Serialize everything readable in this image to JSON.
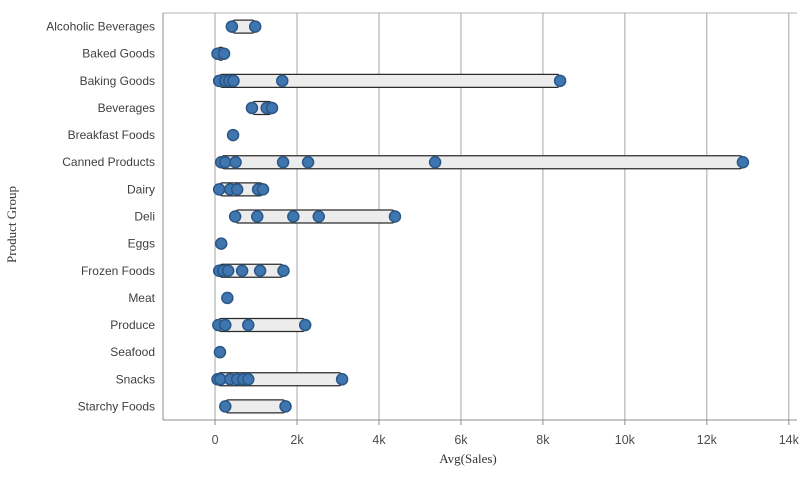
{
  "chart_data": {
    "type": "scatter",
    "subtype": "distribution-plot",
    "title": "",
    "xlabel": "Avg(Sales)",
    "ylabel": "Product Group",
    "x_tick_labels": [
      "0",
      "2k",
      "4k",
      "6k",
      "8k",
      "10k",
      "12k",
      "14k"
    ],
    "x_tick_values": [
      0,
      2000,
      4000,
      6000,
      8000,
      10000,
      12000,
      14000
    ],
    "xlim": [
      -1270,
      14200
    ],
    "grid": true,
    "legend": false,
    "rows": [
      {
        "group": "Alcoholic Beverages",
        "points": [
          410,
          980
        ]
      },
      {
        "group": "Baked Goods",
        "points": [
          60,
          220
        ]
      },
      {
        "group": "Baking Goods",
        "points": [
          100,
          250,
          350,
          450,
          1640,
          8420
        ]
      },
      {
        "group": "Beverages",
        "points": [
          900,
          1260,
          1390
        ]
      },
      {
        "group": "Breakfast Foods",
        "points": [
          440
        ]
      },
      {
        "group": "Canned Products",
        "points": [
          150,
          250,
          500,
          1660,
          2270,
          5370,
          12880
        ]
      },
      {
        "group": "Dairy",
        "points": [
          100,
          370,
          540,
          1050,
          1170
        ]
      },
      {
        "group": "Deli",
        "points": [
          490,
          1030,
          1910,
          2530,
          4390
        ]
      },
      {
        "group": "Eggs",
        "points": [
          150
        ]
      },
      {
        "group": "Frozen Foods",
        "points": [
          100,
          200,
          320,
          660,
          1100,
          1670
        ]
      },
      {
        "group": "Meat",
        "points": [
          300
        ]
      },
      {
        "group": "Produce",
        "points": [
          80,
          250,
          810,
          2200
        ]
      },
      {
        "group": "Seafood",
        "points": [
          120
        ]
      },
      {
        "group": "Snacks",
        "points": [
          60,
          130,
          370,
          540,
          690,
          810,
          3100
        ]
      },
      {
        "group": "Starchy Foods",
        "points": [
          250,
          1720
        ]
      }
    ],
    "colors": {
      "point_fill": "#3f76b0",
      "point_stroke": "#2a5787",
      "range_fill": "#ececec",
      "range_stroke": "#2b2b2b",
      "gridline": "#a6a6a6",
      "axis_line": "#8c8c8c",
      "top_border": "#b3b3b3",
      "tick_label": "#4d4d4d",
      "category_label": "#404040",
      "axis_title": "#333333"
    }
  }
}
